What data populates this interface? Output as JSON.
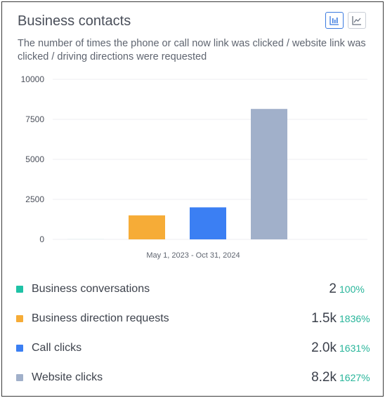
{
  "card": {
    "title": "Business contacts",
    "subtitle": "The number of times the phone or call now link was clicked / website link was clicked / driving directions were requested"
  },
  "view_toggle": {
    "bar_icon": "bar-chart-icon",
    "line_icon": "line-chart-icon",
    "active": "bar"
  },
  "chart_data": {
    "type": "bar",
    "xlabel": "May 1, 2023 - Oct 31, 2024",
    "ylim": [
      0,
      10000
    ],
    "yticks": [
      0,
      2500,
      5000,
      7500,
      10000
    ],
    "grid": true,
    "series": [
      {
        "name": "Business conversations",
        "value": 2,
        "color": "#1fc2a6"
      },
      {
        "name": "Business direction requests",
        "value": 1500,
        "color": "#f6ac37"
      },
      {
        "name": "Call clicks",
        "value": 2000,
        "color": "#3b7ff3"
      },
      {
        "name": "Website clicks",
        "value": 8150,
        "color": "#a1b0ca"
      }
    ]
  },
  "legend": [
    {
      "label": "Business conversations",
      "value": "2",
      "change": "100%",
      "color": "#1fc2a6"
    },
    {
      "label": "Business direction requests",
      "value": "1.5k",
      "change": "1836%",
      "color": "#f6ac37"
    },
    {
      "label": "Call clicks",
      "value": "2.0k",
      "change": "1631%",
      "color": "#3b7ff3"
    },
    {
      "label": "Website clicks",
      "value": "8.2k",
      "change": "1627%",
      "color": "#a1b0ca"
    }
  ]
}
